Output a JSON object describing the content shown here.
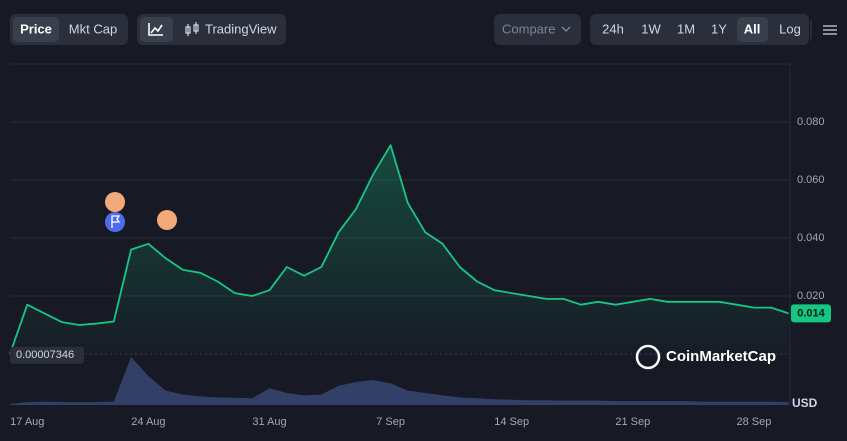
{
  "toolbar": {
    "view_tabs": [
      "Price",
      "Mkt Cap"
    ],
    "tradingview": "TradingView",
    "compare": "Compare",
    "ranges": [
      "24h",
      "1W",
      "1M",
      "1Y",
      "All"
    ],
    "log": "Log"
  },
  "watermark": "CoinMarketCap",
  "chart_data": {
    "type": "line",
    "categories": [
      null,
      "17 Aug",
      null,
      null,
      null,
      null,
      null,
      null,
      "24 Aug",
      null,
      null,
      null,
      null,
      null,
      null,
      "31 Aug",
      null,
      null,
      null,
      null,
      null,
      null,
      "7 Sep",
      null,
      null,
      null,
      null,
      null,
      null,
      "14 Sep",
      null,
      null,
      null,
      null,
      null,
      null,
      "21 Sep",
      null,
      null,
      null,
      null,
      null,
      null,
      "28 Sep",
      null,
      null
    ],
    "series": [
      {
        "name": "Price",
        "color": "#16c784",
        "values": [
          7.346e-05,
          0.017,
          0.014,
          0.011,
          0.01,
          0.0105,
          0.0112,
          0.036,
          0.038,
          0.033,
          0.029,
          0.028,
          0.025,
          0.021,
          0.02,
          0.022,
          0.03,
          0.027,
          0.03,
          0.042,
          0.05,
          0.062,
          0.072,
          0.052,
          0.042,
          0.038,
          0.03,
          0.025,
          0.022,
          0.021,
          0.02,
          0.019,
          0.019,
          0.017,
          0.018,
          0.017,
          0.018,
          0.019,
          0.018,
          0.018,
          0.018,
          0.018,
          0.017,
          0.016,
          0.016,
          0.014
        ]
      }
    ],
    "min_price": 7.346e-05,
    "ylim": [
      0,
      0.1
    ],
    "yticks": [
      {
        "value": 0.02,
        "label": "0.020"
      },
      {
        "value": 0.04,
        "label": "0.040"
      },
      {
        "value": 0.06,
        "label": "0.060"
      },
      {
        "value": 0.08,
        "label": "0.080"
      }
    ],
    "grid": true,
    "volume": {
      "name": "USD",
      "color": "#3a4a78",
      "values": [
        2,
        6,
        7,
        6,
        6,
        6,
        7,
        100,
        60,
        30,
        22,
        18,
        16,
        15,
        14,
        35,
        25,
        20,
        22,
        40,
        48,
        52,
        45,
        30,
        25,
        20,
        16,
        14,
        12,
        11,
        10,
        10,
        9,
        9,
        9,
        8,
        8,
        8,
        8,
        8,
        7,
        7,
        7,
        7,
        7,
        6
      ]
    },
    "volume_lim": [
      0,
      100
    ]
  }
}
